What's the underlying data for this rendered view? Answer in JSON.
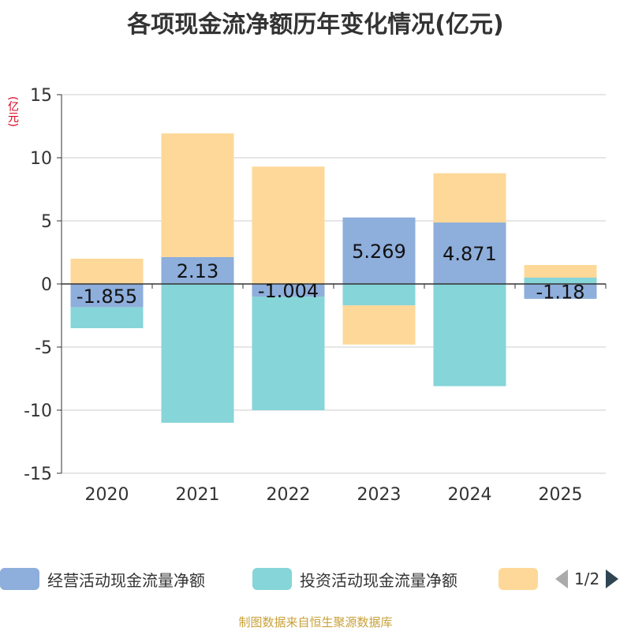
{
  "title": "各项现金流净额历年变化情况(亿元)",
  "unit_label": "(亿元)",
  "source": "制图数据来自恒生聚源数据库",
  "pager": {
    "text": "1/2",
    "prev_icon": "triangle-left-icon",
    "next_icon": "triangle-right-icon"
  },
  "legend": [
    {
      "label": "经营活动现金流量净额",
      "color": "#8eaedb"
    },
    {
      "label": "投资活动现金流量净额",
      "color": "#86d5d8"
    },
    {
      "label": "",
      "color": "#fed898"
    }
  ],
  "chart_data": {
    "type": "bar",
    "stacked": true,
    "title": "各项现金流净额历年变化情况(亿元)",
    "ylabel": "(亿元)",
    "categories": [
      "2020",
      "2021",
      "2022",
      "2023",
      "2024",
      "2025"
    ],
    "ylim": [
      -15,
      15
    ],
    "yticks": [
      15,
      10,
      5,
      0,
      -5,
      -10,
      -15
    ],
    "ytick_labels": [
      "15",
      "10",
      "5",
      "0",
      "-5",
      "-10",
      "-15"
    ],
    "series": [
      {
        "name": "经营活动现金流量净额",
        "color": "#8eaedb",
        "values": [
          -1.855,
          2.13,
          -1.004,
          5.269,
          4.871,
          -1.18
        ],
        "labels": [
          "-1.855",
          "2.13",
          "-1.004",
          "5.269",
          "4.871",
          "-1.18"
        ]
      },
      {
        "name": "投资活动现金流量净额",
        "color": "#86d5d8",
        "values": [
          -1.65,
          -11.0,
          -9.0,
          -1.7,
          -8.1,
          0.5
        ]
      },
      {
        "name": "",
        "color": "#fed898",
        "values": [
          2.0,
          9.8,
          9.3,
          -3.1,
          3.9,
          1.0
        ]
      }
    ]
  }
}
